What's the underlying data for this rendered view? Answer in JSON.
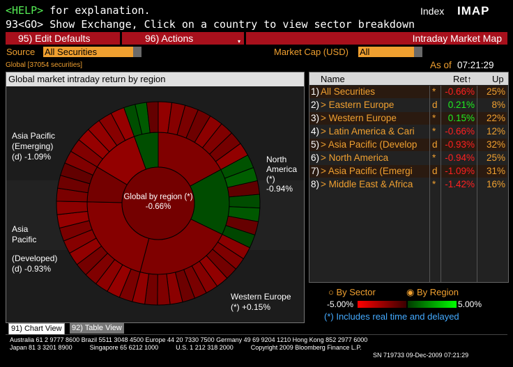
{
  "header": {
    "help_key": "<HELP>",
    "help_text": " for explanation.",
    "go_key": "93<GO>",
    "go_text": " Show Exchange, Click on a country to view sector breakdown",
    "index_label": "Index",
    "function_code": "IMAP"
  },
  "menubar": {
    "edit_defaults": "95)  Edit Defaults",
    "actions": "96)  Actions",
    "title": "Intraday Market Map"
  },
  "filters": {
    "source_label": "Source",
    "source_value": "All Securities",
    "marketcap_label": "Market Cap (USD)",
    "marketcap_value": "All"
  },
  "status": {
    "universe": "Global [37054 securities]",
    "as_of_label": "As of",
    "as_of_time": "07:21:29"
  },
  "chart_panel": {
    "title": "Global market intraday return by region",
    "center_label": "Global by region (*)",
    "center_value": "-0.66%",
    "labels": {
      "na_line1": "North",
      "na_line2": "America",
      "na_line3": "(*)",
      "na_line4": "-0.94%",
      "ape_line1": "Asia Pacific",
      "ape_line2": "(Emerging)",
      "ape_line3": "(d) -1.09%",
      "apd_line1": "Asia",
      "apd_line2": "Pacific",
      "apd_line3": "(Developed)",
      "apd_line4": "(d) -0.93%",
      "we_line1": "Western Europe",
      "we_line2": "(*) +0.15%"
    }
  },
  "chart_data": {
    "type": "pie",
    "title": "Global market intraday return by region",
    "center": {
      "label": "Global by region (*)",
      "value": -0.66
    },
    "categories": [
      "North America",
      "Western Europe",
      "Asia Pacific (Developed)",
      "Asia Pacific (Emerging)",
      "Latin America & Caribbean",
      "Middle East & Africa",
      "Eastern Europe"
    ],
    "weights_pct": [
      25,
      22,
      32,
      31,
      12,
      16,
      8
    ],
    "returns_pct": [
      -0.94,
      0.15,
      -0.93,
      -1.09,
      -0.66,
      -1.42,
      0.21
    ],
    "color_scale": {
      "min": -5.0,
      "max": 5.0,
      "min_label": "-5.00%",
      "max_label": "5.00%",
      "negative_color": "#c00000",
      "positive_color": "#00c000"
    }
  },
  "table": {
    "col_name": "Name",
    "col_ret": "Ret↑",
    "col_up": "Up",
    "rows": [
      {
        "num": "1)",
        "name": "All Securities",
        "flag": "*",
        "ret": "-0.66%",
        "up": "25%"
      },
      {
        "num": "2)",
        "name": "> Eastern Europe",
        "flag": "d",
        "ret": "0.21%",
        "up": "8%"
      },
      {
        "num": "3)",
        "name": "> Western Europe",
        "flag": "*",
        "ret": "0.15%",
        "up": "22%"
      },
      {
        "num": "4)",
        "name": "> Latin America & Cari",
        "flag": "*",
        "ret": "-0.66%",
        "up": "12%"
      },
      {
        "num": "5)",
        "name": "> Asia Pacific (Develop",
        "flag": "d",
        "ret": "-0.93%",
        "up": "32%"
      },
      {
        "num": "6)",
        "name": "> North America",
        "flag": "*",
        "ret": "-0.94%",
        "up": "25%"
      },
      {
        "num": "7)",
        "name": "> Asia Pacific (Emergi",
        "flag": "d",
        "ret": "-1.09%",
        "up": "31%"
      },
      {
        "num": "8)",
        "name": "> Middle East & Africa",
        "flag": "*",
        "ret": "-1.42%",
        "up": "16%"
      }
    ]
  },
  "legend": {
    "by_sector": "By Sector",
    "by_region": "By Region",
    "min": "-5.00%",
    "max": "5.00%",
    "note": "(*) Includes real time and delayed"
  },
  "tabs": {
    "chart_view": "91) Chart View",
    "table_view": "92) Table View"
  },
  "footer": {
    "line1": "Australia 61 2 9777 8600 Brazil 5511 3048 4500 Europe 44 20 7330 7500 Germany 49 69 9204 1210 Hong Kong 852 2977 6000",
    "line2": "Japan 81 3 3201 8900          Singapore 65 6212 1000          U.S. 1 212 318 2000          Copyright 2009 Bloomberg Finance L.P.",
    "line3": "SN 719733 09-Dec-2009 07:21:29"
  },
  "colors": {
    "amber": "#f0a030",
    "menu_red": "#a8101c",
    "positive": "#00cc00",
    "negative": "#dd0000"
  }
}
